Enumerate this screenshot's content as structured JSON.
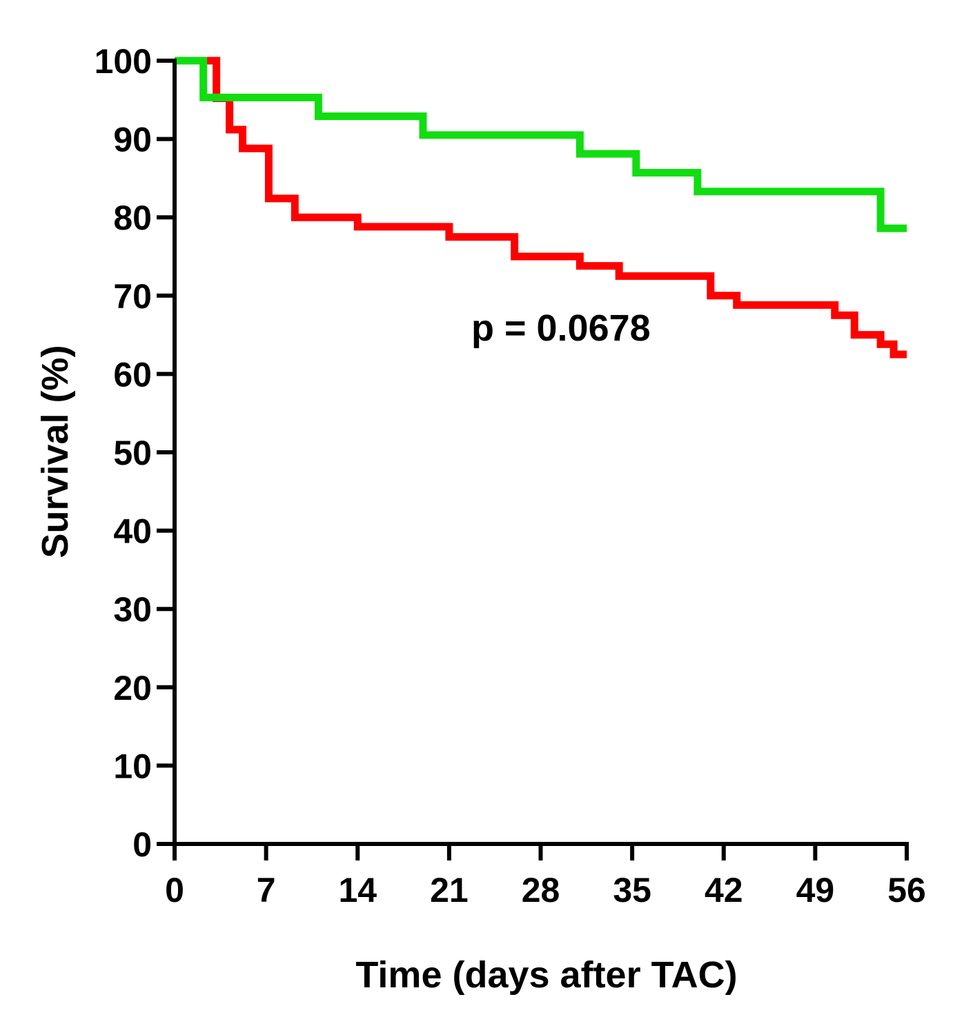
{
  "chart_data": {
    "type": "line",
    "subtype": "kaplan-meier-step",
    "title": "",
    "xlabel": "Time (days after TAC)",
    "ylabel": "Survival (%)",
    "xlim": [
      0,
      56
    ],
    "ylim": [
      0,
      100
    ],
    "xticks": [
      0,
      7,
      14,
      21,
      28,
      35,
      42,
      49,
      56
    ],
    "yticks": [
      0,
      10,
      20,
      30,
      40,
      50,
      60,
      70,
      80,
      90,
      100
    ],
    "grid": false,
    "annotation": "p = 0.0678",
    "series": [
      {
        "name": "green",
        "color": "#11dd11",
        "steps": [
          [
            0,
            100
          ],
          [
            2.2,
            95.3
          ],
          [
            11,
            92.9
          ],
          [
            19,
            90.5
          ],
          [
            31,
            88.1
          ],
          [
            35.3,
            85.7
          ],
          [
            40,
            83.3
          ],
          [
            54,
            78.6
          ],
          [
            56,
            78.6
          ]
        ]
      },
      {
        "name": "red",
        "color": "#ff0000",
        "steps": [
          [
            0,
            100
          ],
          [
            3.2,
            95.2
          ],
          [
            4.2,
            91.2
          ],
          [
            5.2,
            88.8
          ],
          [
            7.2,
            82.4
          ],
          [
            9.2,
            80.0
          ],
          [
            14,
            78.8
          ],
          [
            21,
            77.5
          ],
          [
            26,
            75.0
          ],
          [
            31,
            73.8
          ],
          [
            34,
            72.5
          ],
          [
            41,
            70.0
          ],
          [
            43,
            68.8
          ],
          [
            50.5,
            67.5
          ],
          [
            52,
            65.0
          ],
          [
            54,
            63.8
          ],
          [
            55,
            62.5
          ],
          [
            56,
            62.5
          ]
        ]
      }
    ]
  }
}
